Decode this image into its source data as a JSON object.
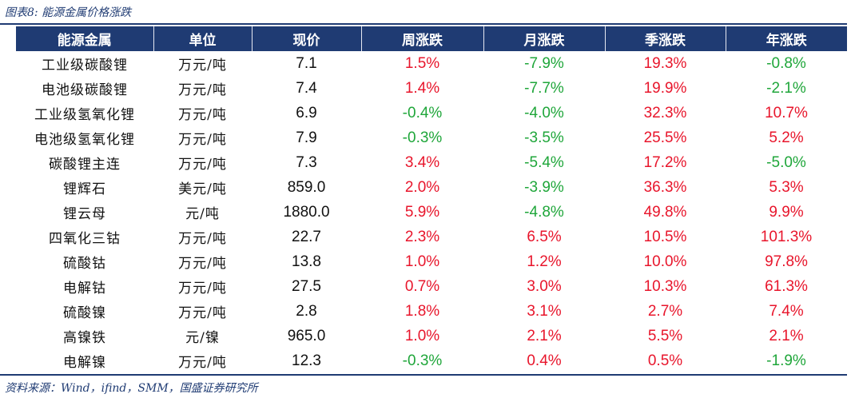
{
  "caption": "图表8:  能源金属价格涨跌",
  "headers": [
    "能源金属",
    "单位",
    "现价",
    "周涨跌",
    "月涨跌",
    "季涨跌",
    "年涨跌"
  ],
  "rows": [
    {
      "name": "工业级碳酸锂",
      "unit": "万元/吨",
      "price": "7.1",
      "week": "1.5%",
      "month": "-7.9%",
      "quarter": "19.3%",
      "year": "-0.8%"
    },
    {
      "name": "电池级碳酸锂",
      "unit": "万元/吨",
      "price": "7.4",
      "week": "1.4%",
      "month": "-7.7%",
      "quarter": "19.9%",
      "year": "-2.1%"
    },
    {
      "name": "工业级氢氧化锂",
      "unit": "万元/吨",
      "price": "6.9",
      "week": "-0.4%",
      "month": "-4.0%",
      "quarter": "32.3%",
      "year": "10.7%"
    },
    {
      "name": "电池级氢氧化锂",
      "unit": "万元/吨",
      "price": "7.9",
      "week": "-0.3%",
      "month": "-3.5%",
      "quarter": "25.5%",
      "year": "5.2%"
    },
    {
      "name": "碳酸锂主连",
      "unit": "万元/吨",
      "price": "7.3",
      "week": "3.4%",
      "month": "-5.4%",
      "quarter": "17.2%",
      "year": "-5.0%"
    },
    {
      "name": "锂辉石",
      "unit": "美元/吨",
      "price": "859.0",
      "week": "2.0%",
      "month": "-3.9%",
      "quarter": "36.3%",
      "year": "5.3%"
    },
    {
      "name": "锂云母",
      "unit": "元/吨",
      "price": "1880.0",
      "week": "5.9%",
      "month": "-4.8%",
      "quarter": "49.8%",
      "year": "9.9%"
    },
    {
      "name": "四氧化三钴",
      "unit": "万元/吨",
      "price": "22.7",
      "week": "2.3%",
      "month": "6.5%",
      "quarter": "10.5%",
      "year": "101.3%"
    },
    {
      "name": "硫酸钴",
      "unit": "万元/吨",
      "price": "13.8",
      "week": "1.0%",
      "month": "1.2%",
      "quarter": "10.0%",
      "year": "97.8%"
    },
    {
      "name": "电解钴",
      "unit": "万元/吨",
      "price": "27.5",
      "week": "0.7%",
      "month": "3.0%",
      "quarter": "10.3%",
      "year": "61.3%"
    },
    {
      "name": "硫酸镍",
      "unit": "万元/吨",
      "price": "2.8",
      "week": "1.8%",
      "month": "3.1%",
      "quarter": "2.7%",
      "year": "7.4%"
    },
    {
      "name": "高镍铁",
      "unit": "元/镍",
      "price": "965.0",
      "week": "1.0%",
      "month": "2.1%",
      "quarter": "5.5%",
      "year": "2.1%"
    },
    {
      "name": "电解镍",
      "unit": "万元/吨",
      "price": "12.3",
      "week": "-0.3%",
      "month": "0.4%",
      "quarter": "0.5%",
      "year": "-1.9%"
    }
  ],
  "source": "资料来源：Wind，ifind，SMM，国盛证券研究所",
  "colors": {
    "header_bg": "#1f3b73",
    "positive": "#e8152b",
    "negative": "#1fa63a"
  }
}
